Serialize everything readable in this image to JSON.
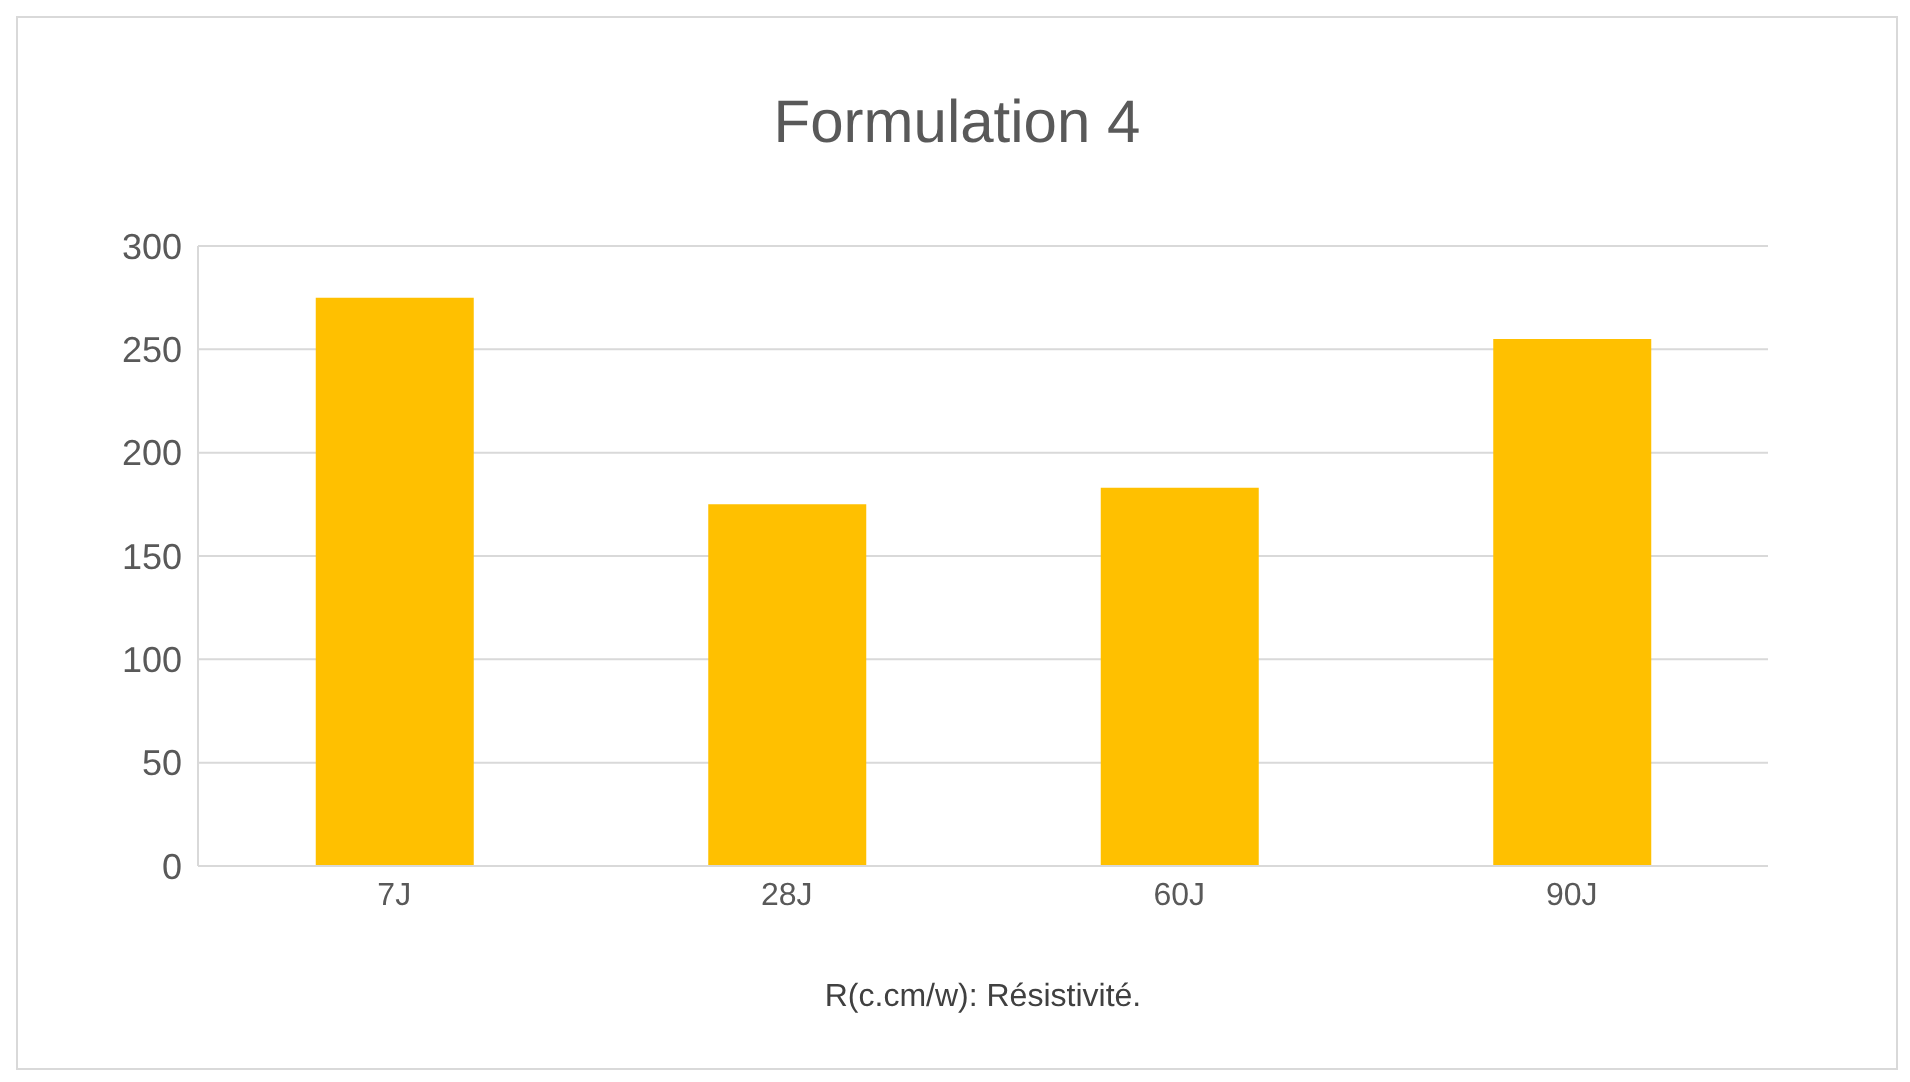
{
  "chart_data": {
    "type": "bar",
    "title": "Formulation 4",
    "xlabel": "R(c.cm/w): Résistivité.",
    "categories": [
      "7J",
      "28J",
      "60J",
      "90J"
    ],
    "values": [
      275,
      175,
      183,
      255
    ],
    "color": "#ffc000",
    "ylim": [
      0,
      300
    ],
    "yticks": [
      0,
      50,
      100,
      150,
      200,
      250,
      300
    ],
    "grid": "y"
  }
}
